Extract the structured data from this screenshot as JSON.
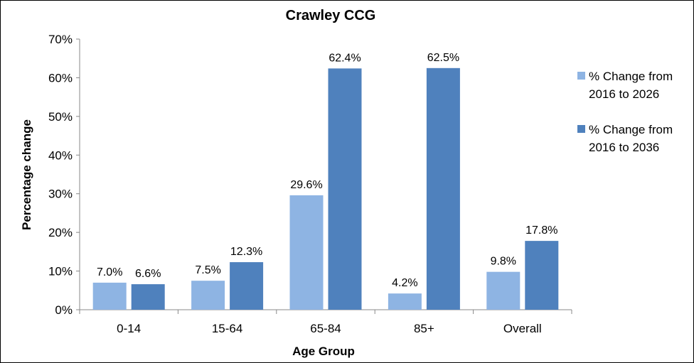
{
  "chart_data": {
    "type": "bar",
    "title": "Crawley CCG",
    "xlabel": "Age Group",
    "ylabel": "Percentage change",
    "categories": [
      "0-14",
      "15-64",
      "65-84",
      "85+",
      "Overall"
    ],
    "ylim": [
      0,
      70
    ],
    "yticks": [
      "0%",
      "10%",
      "20%",
      "30%",
      "40%",
      "50%",
      "60%",
      "70%"
    ],
    "grid": false,
    "legend_position": "right",
    "series": [
      {
        "name_lines": [
          "% Change from",
          "2016 to 2026"
        ],
        "color": "#8EB4E3",
        "values": [
          7.0,
          7.5,
          29.6,
          4.2,
          9.8
        ],
        "labels": [
          "7.0%",
          "7.5%",
          "29.6%",
          "4.2%",
          "9.8%"
        ]
      },
      {
        "name_lines": [
          "% Change from",
          "2016 to 2036"
        ],
        "color": "#4F81BD",
        "values": [
          6.6,
          12.3,
          62.4,
          62.5,
          17.8
        ],
        "labels": [
          "6.6%",
          "12.3%",
          "62.4%",
          "62.5%",
          "17.8%"
        ]
      }
    ]
  }
}
